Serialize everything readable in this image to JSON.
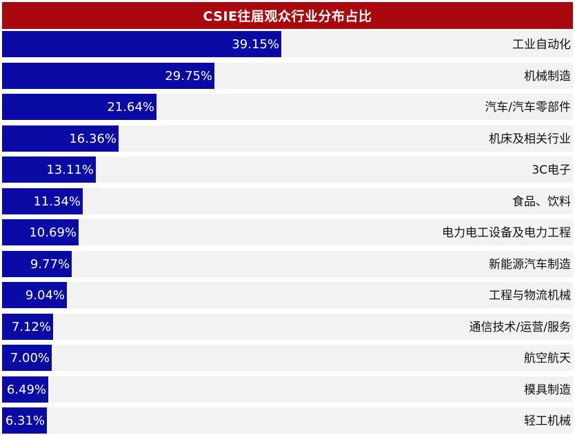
{
  "header": {
    "title": "CSIE往届观众行业分布占比"
  },
  "colors": {
    "header_bg": "#a8080e",
    "bar": "#0a0aa4",
    "track": "#f2f2f2"
  },
  "chart_data": {
    "type": "bar",
    "orientation": "horizontal",
    "title": "CSIE往届观众行业分布占比",
    "unit": "%",
    "xlim": [
      0,
      80
    ],
    "grid": false,
    "legend": "none",
    "categories": [
      "工业自动化",
      "机械制造",
      "汽车/汽车零部件",
      "机床及相关行业",
      "3C电子",
      "食品、饮料",
      "电力电工设备及电力工程",
      "新能源汽车制造",
      "工程与物流机械",
      "通信技术/运营/服务",
      "航空航天",
      "模具制造",
      "轻工机械"
    ],
    "values": [
      39.15,
      29.75,
      21.64,
      16.36,
      13.11,
      11.34,
      10.69,
      9.77,
      9.04,
      7.12,
      7.0,
      6.49,
      6.31
    ],
    "value_labels": [
      "39.15%",
      "29.75%",
      "21.64%",
      "16.36%",
      "13.11%",
      "11.34%",
      "10.69%",
      "9.77%",
      "9.04%",
      "7.12%",
      "7.00%",
      "6.49%",
      "6.31%"
    ]
  }
}
